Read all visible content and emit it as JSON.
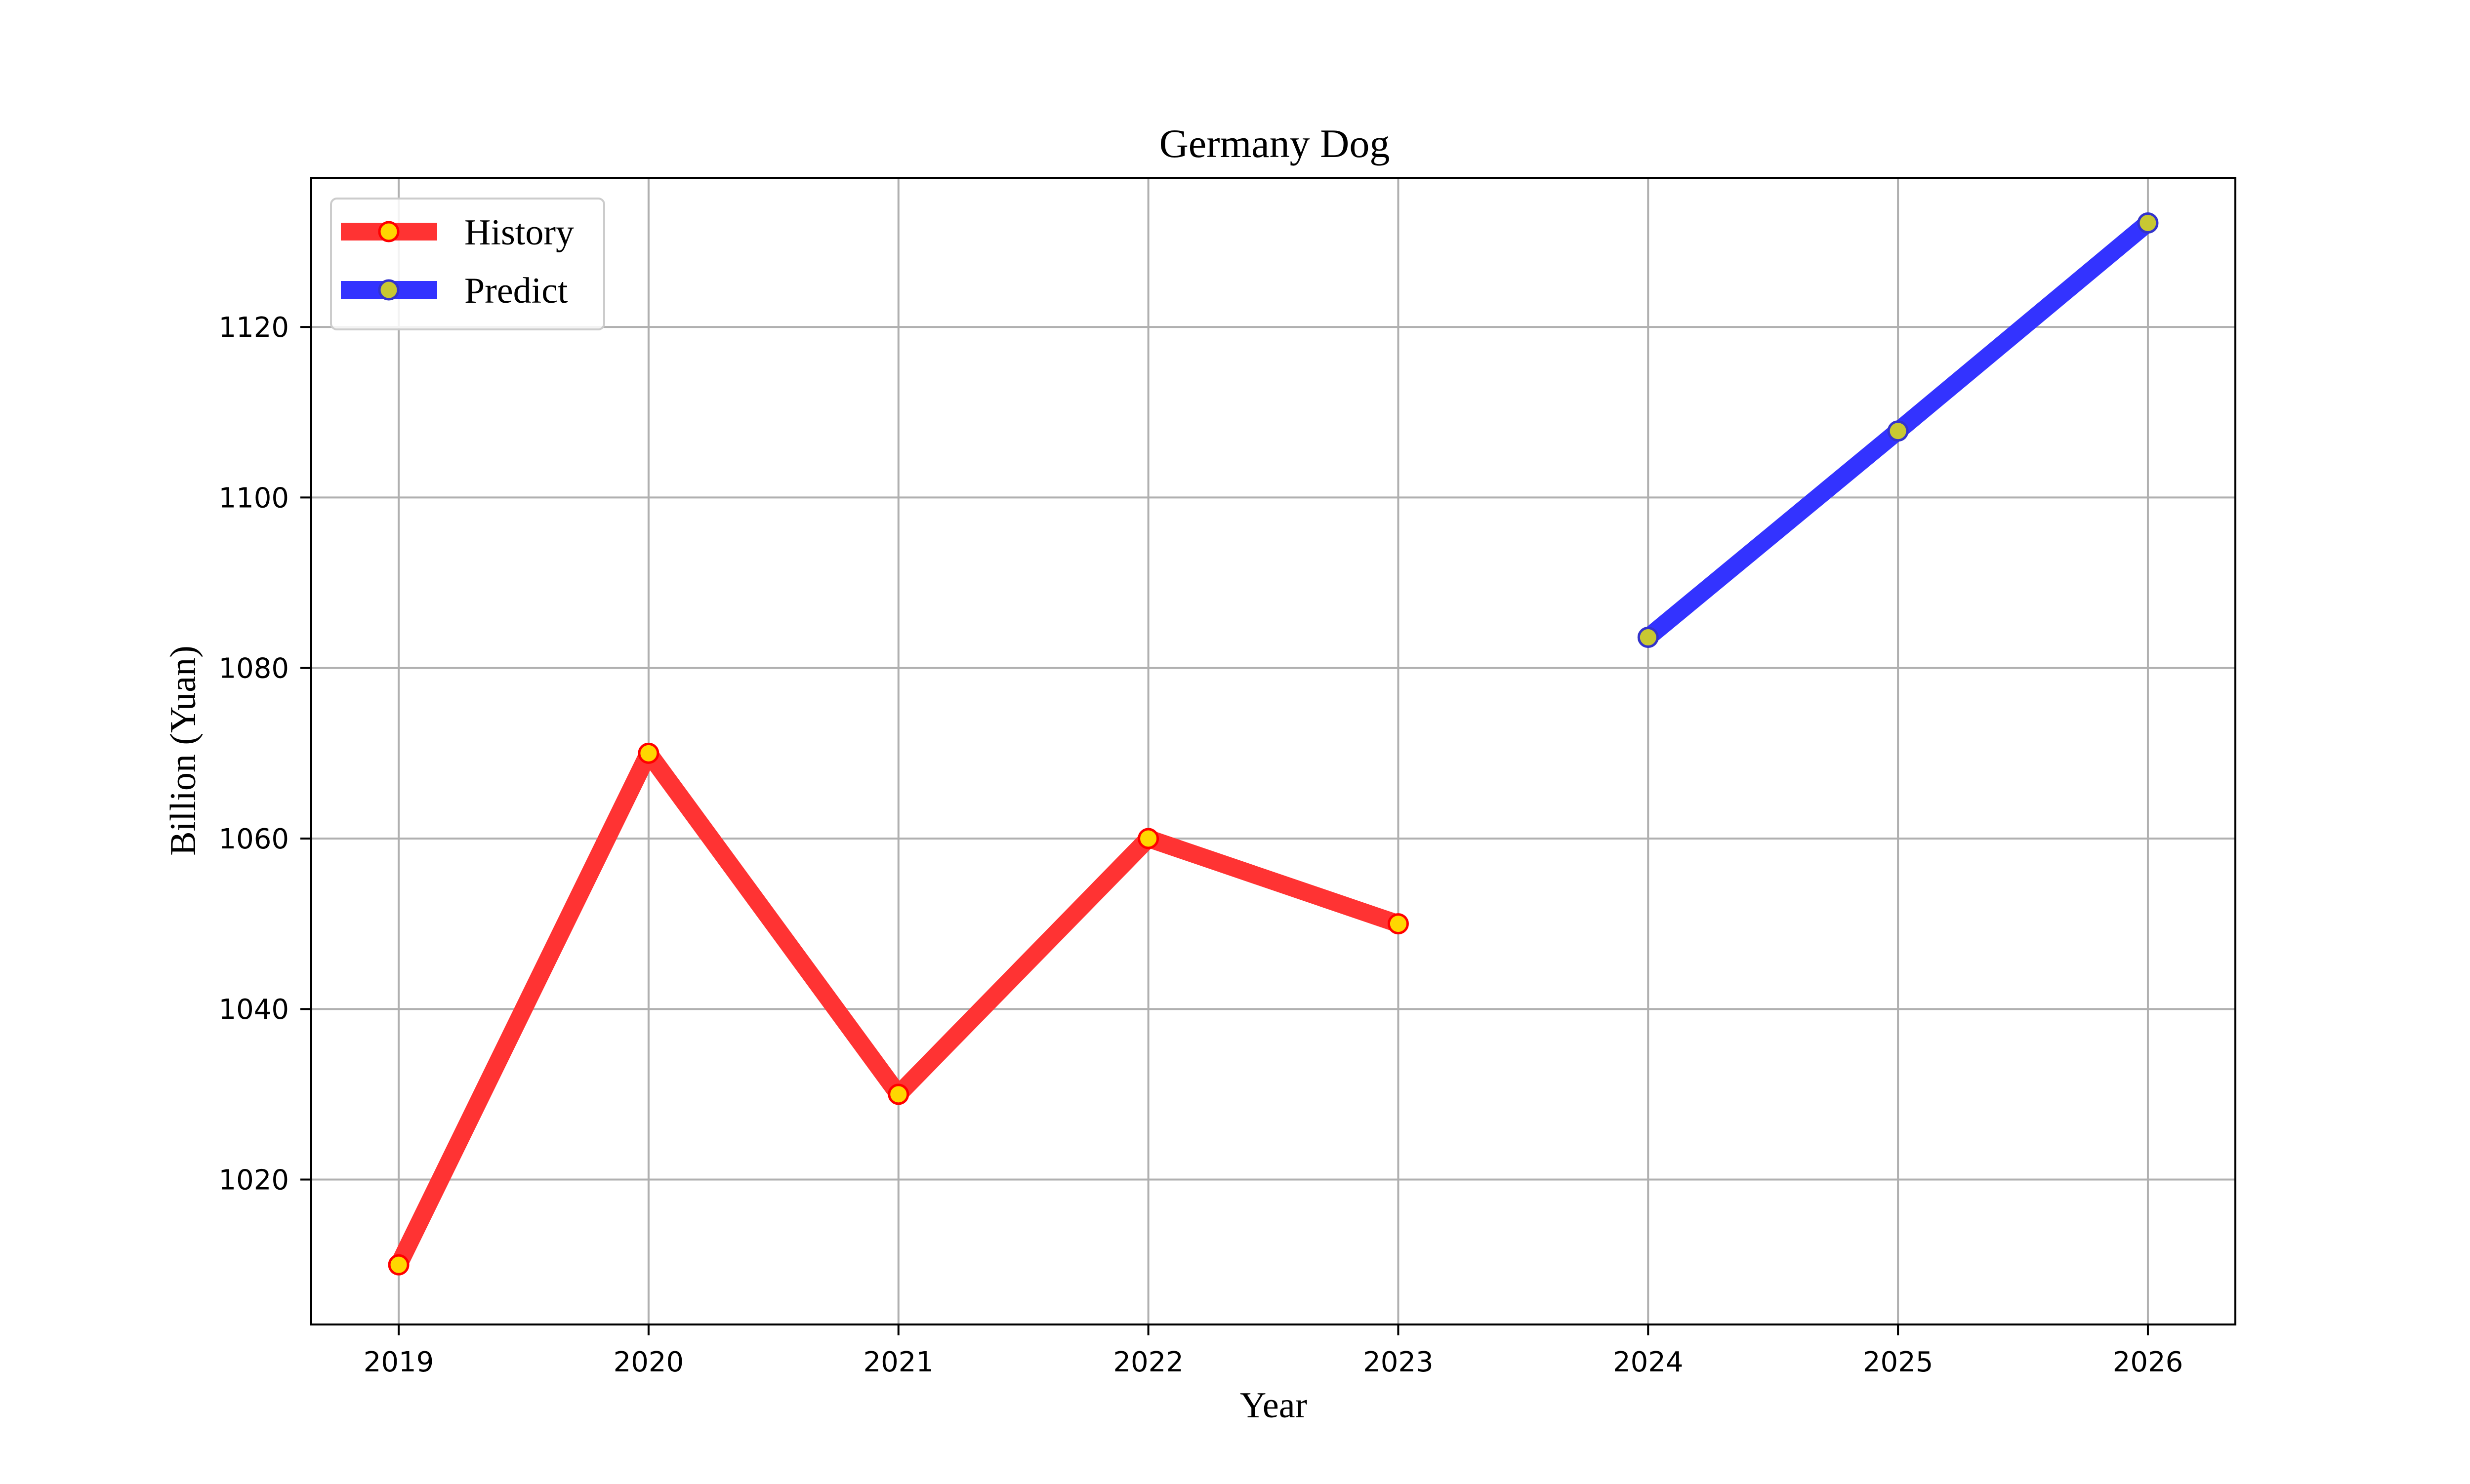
{
  "chart_data": {
    "type": "line",
    "title": "Germany Dog",
    "xlabel": "Year",
    "ylabel": "Billion (Yuan)",
    "x_ticks": [
      "2019",
      "2020",
      "2021",
      "2022",
      "2023",
      "2024",
      "2025",
      "2026"
    ],
    "y_ticks": [
      "1020",
      "1040",
      "1060",
      "1080",
      "1100",
      "1120"
    ],
    "xlim": [
      2018.65,
      2026.35
    ],
    "ylim": [
      1003,
      1137.5
    ],
    "grid": true,
    "legend_position": "upper-left",
    "series": [
      {
        "name": "History",
        "color": "#ff3333",
        "marker_fill": "#ffd700",
        "marker_edge": "#ff0000",
        "x": [
          2019,
          2020,
          2021,
          2022,
          2023
        ],
        "values": [
          1010,
          1070,
          1030,
          1060,
          1050
        ]
      },
      {
        "name": "Predict",
        "color": "#3333ff",
        "marker_fill": "#c8c832",
        "marker_edge": "#3333cc",
        "x": [
          2024,
          2025,
          2026
        ],
        "values": [
          1083.6,
          1107.8,
          1132.2
        ]
      }
    ]
  }
}
